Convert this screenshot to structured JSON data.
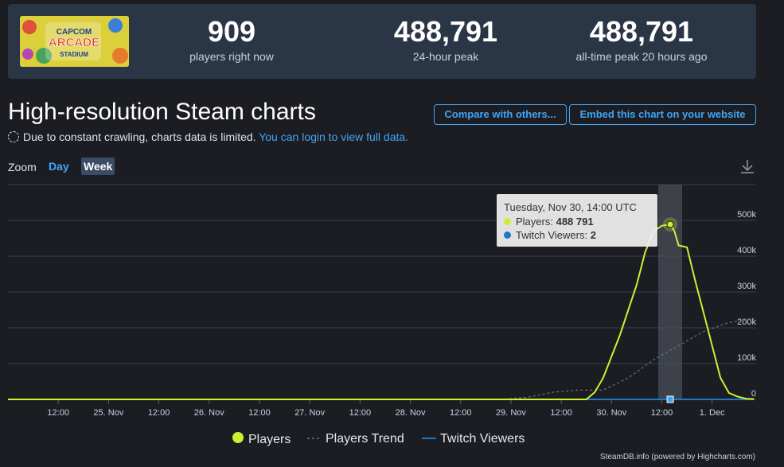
{
  "header": {
    "stats": [
      {
        "value": "909",
        "label": "players right now"
      },
      {
        "value": "488,791",
        "label": "24-hour peak"
      },
      {
        "value": "488,791",
        "label": "all-time peak 20 hours ago"
      }
    ],
    "logo_text": [
      "CAPCOM",
      "ARCADE",
      "STADIUM"
    ]
  },
  "page": {
    "title": "High-resolution Steam charts",
    "notice_text": "Due to constant crawling, charts data is limited.",
    "notice_link": "You can login to view full data.",
    "compare_button": "Compare with others...",
    "embed_button": "Embed this chart on your website"
  },
  "zoom": {
    "label": "Zoom",
    "options": [
      "Day",
      "Week"
    ],
    "selected": "Week"
  },
  "tooltip": {
    "date": "Tuesday, Nov 30, 14:00 UTC",
    "players_label": "Players:",
    "players_value": "488 791",
    "twitch_label": "Twitch Viewers:",
    "twitch_value": "2"
  },
  "legend": [
    "Players",
    "Players Trend",
    "Twitch Viewers"
  ],
  "credit": "SteamDB.info (powered by Highcharts.com)",
  "colors": {
    "players": "#cdf032",
    "trend": "#6b7280",
    "twitch": "#1e77c7",
    "accent": "#42a5f5"
  },
  "chart_data": {
    "type": "line",
    "x_ticks": [
      "12:00",
      "25. Nov",
      "12:00",
      "26. Nov",
      "12:00",
      "27. Nov",
      "12:00",
      "28. Nov",
      "12:00",
      "29. Nov",
      "12:00",
      "30. Nov",
      "12:00",
      "1. Dec"
    ],
    "y_ticks": [
      "0",
      "100k",
      "200k",
      "300k",
      "400k",
      "500k"
    ],
    "ylim": [
      0,
      600000
    ],
    "x_unit": "hours since 24 Nov 00:00 UTC",
    "highlight_x": 158,
    "series": [
      {
        "name": "Players",
        "x": [
          0,
          122,
          138,
          140,
          142,
          144,
          146,
          148,
          150,
          152,
          154,
          156,
          158,
          159,
          160,
          162,
          164,
          166,
          168,
          170,
          172,
          174,
          176,
          178
        ],
        "y": [
          0,
          0,
          0,
          20000,
          60000,
          120000,
          180000,
          250000,
          320000,
          410000,
          470000,
          485000,
          488791,
          470000,
          430000,
          425000,
          330000,
          240000,
          150000,
          60000,
          18000,
          8000,
          2000,
          900
        ]
      },
      {
        "name": "Players Trend",
        "x": [
          0,
          118,
          124,
          130,
          136,
          142,
          148,
          154,
          160,
          166,
          172,
          178
        ],
        "y": [
          0,
          0,
          6000,
          20000,
          26000,
          26000,
          60000,
          110000,
          150000,
          190000,
          215000,
          225000
        ]
      },
      {
        "name": "Twitch Viewers",
        "x": [
          0,
          178
        ],
        "y": [
          2,
          2
        ]
      }
    ]
  }
}
